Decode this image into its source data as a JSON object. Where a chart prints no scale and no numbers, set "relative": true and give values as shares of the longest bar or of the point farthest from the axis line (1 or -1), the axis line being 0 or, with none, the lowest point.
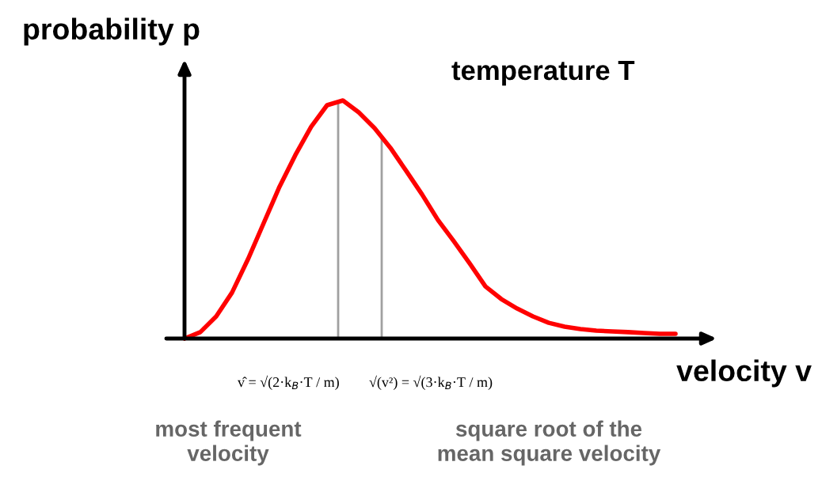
{
  "chart_data": {
    "type": "line",
    "title": "temperature T",
    "xlabel": "velocity v",
    "ylabel": "probability p",
    "relative": true,
    "categories": [
      null,
      null,
      null,
      null,
      null,
      null,
      null,
      null,
      null,
      null,
      null,
      null,
      null,
      null,
      null,
      null,
      null,
      null,
      null,
      null,
      null,
      null,
      null,
      null,
      null,
      null,
      null,
      null,
      null,
      null,
      null,
      null
    ],
    "series": [
      {
        "color": "#ff0000",
        "values": [
          0,
          0.027,
          0.093,
          0.193,
          0.332,
          0.485,
          0.638,
          0.771,
          0.89,
          0.98,
          1.0,
          0.95,
          0.884,
          0.801,
          0.704,
          0.605,
          0.498,
          0.409,
          0.316,
          0.219,
          0.166,
          0.126,
          0.093,
          0.066,
          0.05,
          0.04,
          0.033,
          0.03,
          0.027,
          0.023,
          0.02,
          0.02
        ]
      }
    ],
    "annotations": [
      "v̂ = √(2·k$_{B}$·T / m)",
      "√(v²) = √(3·k$_{B}$·T / m)",
      "most frequent\nvelocity",
      "square root of the\nmean square velocity"
    ]
  }
}
